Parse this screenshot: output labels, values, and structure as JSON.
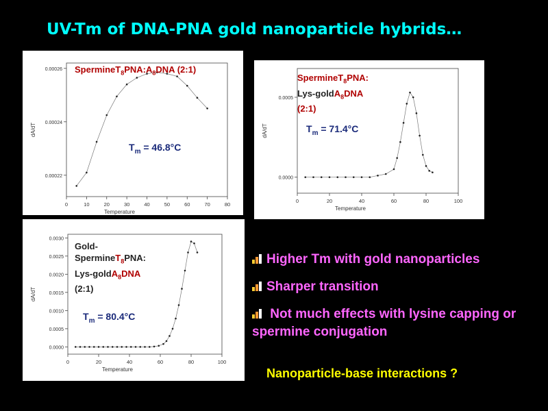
{
  "slide": {
    "title": "UV-Tm of DNA-PNA gold nanoparticle hybrids…",
    "bullets": [
      "Higher Tm with gold nanoparticles",
      "Sharper transition",
      " Not much effects with lysine capping or spermine conjugation"
    ],
    "question": "Nanoparticle-base interactions ?",
    "colors": {
      "title": "#00ffff",
      "bullets": "#ff66ff",
      "question": "#ffff00",
      "annotation_red": "#b00000",
      "tm_label": "#1a2a7a"
    }
  },
  "chart_data": [
    {
      "type": "scatter",
      "annotation": {
        "p1": "Spermine",
        "p2": "T",
        "p3": "8",
        "p4": "PNA:",
        "p5": "A",
        "p6": "8",
        "p7": "DNA (2:1)"
      },
      "tm_label": {
        "prefix": "T",
        "sub": "m",
        "text": " = 46.8°C"
      },
      "xlabel": "Temperature",
      "ylabel": "dA/dT",
      "xlim": [
        0,
        80
      ],
      "ylim": [
        0.000212,
        0.000262
      ],
      "xticks": [
        "0",
        "10",
        "20",
        "30",
        "40",
        "50",
        "60",
        "70",
        "80"
      ],
      "xtick_values": [
        0,
        10,
        20,
        30,
        40,
        50,
        60,
        70,
        80
      ],
      "yticks": [
        "0.00022",
        "0.00024",
        "0.00026"
      ],
      "ytick_values": [
        0.00022,
        0.00024,
        0.00026
      ],
      "x": [
        5,
        10,
        15,
        20,
        25,
        30,
        35,
        40,
        45,
        50,
        55,
        60,
        65,
        70
      ],
      "y": [
        0.000216,
        0.000221,
        0.0002325,
        0.0002425,
        0.0002495,
        0.000254,
        0.0002565,
        0.000258,
        0.0002585,
        0.000258,
        0.000257,
        0.0002535,
        0.000249,
        0.000245
      ]
    },
    {
      "type": "scatter",
      "annotation": {
        "l1p1": "Spermine",
        "l1p2": "T",
        "l1p3": "8",
        "l1p4": "PNA:",
        "l2p1": "Lys-gold",
        "l2p2": "A",
        "l2p3": "8",
        "l2p4": "DNA",
        "l3": "(2:1)"
      },
      "tm_label": {
        "prefix": "T",
        "sub": "m",
        "text": " = 71.4°C"
      },
      "xlabel": "Temperature",
      "ylabel": "dA/dT",
      "xlim": [
        0,
        100
      ],
      "ylim": [
        -0.0001,
        0.00068
      ],
      "xticks": [
        "0",
        "20",
        "40",
        "60",
        "80",
        "100"
      ],
      "xtick_values": [
        0,
        20,
        40,
        60,
        80,
        100
      ],
      "yticks": [
        "0.0000",
        "0.0005"
      ],
      "ytick_values": [
        0,
        0.0005
      ],
      "x": [
        5,
        10,
        15,
        20,
        25,
        30,
        35,
        40,
        45,
        50,
        55,
        60,
        62,
        64,
        66,
        68,
        70,
        72,
        74,
        76,
        78,
        80,
        82,
        84
      ],
      "y": [
        0,
        0,
        0,
        0,
        0,
        0,
        0,
        0,
        0,
        1e-05,
        2e-05,
        5e-05,
        0.00012,
        0.00022,
        0.00034,
        0.00046,
        0.00053,
        0.0005,
        0.0004,
        0.00026,
        0.00014,
        7e-05,
        4e-05,
        3e-05
      ]
    },
    {
      "type": "scatter",
      "annotation": {
        "l1": "Gold-",
        "l2p1": "Spermine",
        "l2p2": "T",
        "l2p3": "8",
        "l2p4": "PNA:",
        "l3p1": "Lys-gold",
        "l3p2": "A",
        "l3p3": "8",
        "l3p4": "DNA",
        "l4": "(2:1)"
      },
      "tm_label": {
        "prefix": "T",
        "sub": "m",
        "text": " = 80.4°C"
      },
      "xlabel": "Temperature",
      "ylabel": "dA/dT",
      "xlim": [
        0,
        100
      ],
      "ylim": [
        -0.0002,
        0.0031
      ],
      "xticks": [
        "0",
        "20",
        "40",
        "60",
        "80",
        "100"
      ],
      "xtick_values": [
        0,
        20,
        40,
        60,
        80,
        100
      ],
      "yticks": [
        "0.0000",
        "0.0005",
        "0.0010",
        "0.0015",
        "0.0020",
        "0.0025",
        "0.0030"
      ],
      "ytick_values": [
        0,
        0.0005,
        0.001,
        0.0015,
        0.002,
        0.0025,
        0.003
      ],
      "x": [
        5,
        8,
        11,
        14,
        17,
        20,
        23,
        26,
        29,
        32,
        35,
        38,
        41,
        44,
        47,
        50,
        53,
        56,
        59,
        62,
        64,
        66,
        68,
        70,
        72,
        74,
        76,
        78,
        80,
        82,
        84
      ],
      "y": [
        0,
        0,
        0,
        0,
        0,
        0,
        0,
        0,
        0,
        0,
        0,
        0,
        0,
        0,
        0,
        0,
        0,
        1e-05,
        3e-05,
        8e-05,
        0.00016,
        0.0003,
        0.0005,
        0.00078,
        0.00115,
        0.0016,
        0.0021,
        0.0026,
        0.0029,
        0.00285,
        0.0026
      ]
    }
  ]
}
